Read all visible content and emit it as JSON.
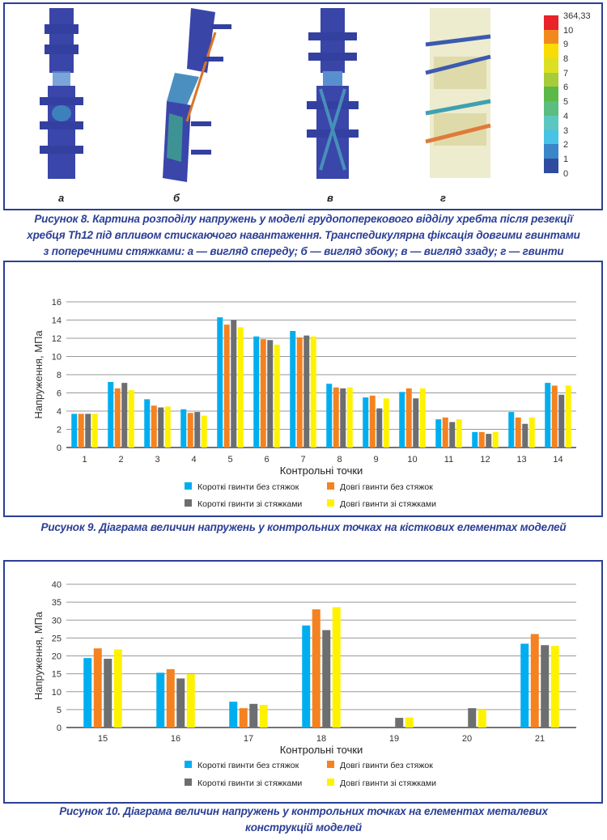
{
  "figure8": {
    "panels": [
      "а",
      "б",
      "в",
      "г"
    ],
    "colorbar": {
      "labels": [
        "364,33",
        "10",
        "9",
        "8",
        "7",
        "6",
        "5",
        "4",
        "3",
        "2",
        "1",
        "0"
      ],
      "colors": [
        "#e8232a",
        "#f2891f",
        "#f9dc05",
        "#dde022",
        "#a8cb3a",
        "#5cb947",
        "#5bbd7f",
        "#5cc7c0",
        "#46c3e6",
        "#3a86c8",
        "#2f4c9f"
      ]
    },
    "caption_lines": [
      "Рисунок 8. Картина розподілу напружень у моделі грудопоперекового відділу хребта після резекції",
      "хребця Th12 під впливом стискаючого навантаження. Транспедикулярна фіксація довгими гвинтами",
      "з поперечними стяжками: а — вигляд спереду; б — вигляд збоку; в — вигляд ззаду; г — гвинти"
    ]
  },
  "figure9": {
    "caption": "Рисунок 9. Діаграма величин напружень у контрольних точках на кісткових елементах моделей"
  },
  "figure10": {
    "caption_lines": [
      "Рисунок 10. Діаграма величин напружень у контрольних точках на елементах металевих",
      "конструкцій моделей"
    ]
  },
  "chart_data": [
    {
      "type": "bar",
      "title": "",
      "xlabel": "Контрольні точки",
      "ylabel": "Напруження, МПа",
      "ylim": [
        0,
        16
      ],
      "yticks": [
        0,
        2,
        4,
        6,
        8,
        10,
        12,
        14,
        16
      ],
      "grid": true,
      "legend_position": "bottom",
      "categories": [
        "1",
        "2",
        "3",
        "4",
        "5",
        "6",
        "7",
        "8",
        "9",
        "10",
        "11",
        "12",
        "13",
        "14"
      ],
      "series": [
        {
          "name": "Короткі гвинти без стяжок",
          "color": "#00aeef",
          "values": [
            3.7,
            7.2,
            5.3,
            4.2,
            14.3,
            12.2,
            12.8,
            7.0,
            5.5,
            6.1,
            3.1,
            1.7,
            3.9,
            7.1
          ]
        },
        {
          "name": "Довгі гвинти без стяжок",
          "color": "#f58220",
          "values": [
            3.7,
            6.5,
            4.6,
            3.8,
            13.5,
            11.9,
            12.1,
            6.6,
            5.7,
            6.5,
            3.3,
            1.7,
            3.3,
            6.8
          ]
        },
        {
          "name": "Короткі гвинти зі стяжками",
          "color": "#6d6e70",
          "values": [
            3.7,
            7.1,
            4.4,
            3.9,
            14.0,
            11.8,
            12.3,
            6.5,
            4.3,
            5.4,
            2.8,
            1.5,
            2.6,
            5.8
          ]
        },
        {
          "name": "Довгі гвинти зі стяжками",
          "color": "#fff200",
          "values": [
            3.7,
            6.3,
            4.5,
            3.5,
            13.2,
            11.3,
            12.2,
            6.6,
            5.4,
            6.5,
            3.1,
            1.7,
            3.3,
            6.8
          ]
        }
      ]
    },
    {
      "type": "bar",
      "title": "",
      "xlabel": "Контрольні точки",
      "ylabel": "Напруження, МПа",
      "ylim": [
        0,
        40
      ],
      "yticks": [
        0,
        5,
        10,
        15,
        20,
        25,
        30,
        35,
        40
      ],
      "grid": true,
      "legend_position": "bottom",
      "categories": [
        "15",
        "16",
        "17",
        "18",
        "19",
        "20",
        "21"
      ],
      "series": [
        {
          "name": "Короткі гвинти без стяжок",
          "color": "#00aeef",
          "values": [
            19.4,
            15.3,
            7.2,
            28.5,
            0,
            0,
            23.4
          ]
        },
        {
          "name": "Довгі гвинти без стяжок",
          "color": "#f58220",
          "values": [
            22.1,
            16.3,
            5.4,
            33.0,
            0,
            0,
            26.1
          ]
        },
        {
          "name": "Короткі гвинти зі стяжками",
          "color": "#6d6e70",
          "values": [
            19.2,
            13.7,
            6.6,
            27.2,
            2.7,
            5.4,
            23.0
          ]
        },
        {
          "name": "Довгі гвинти зі стяжками",
          "color": "#fff200",
          "values": [
            21.8,
            14.9,
            6.3,
            33.6,
            2.8,
            5.0,
            22.8
          ]
        }
      ]
    }
  ]
}
